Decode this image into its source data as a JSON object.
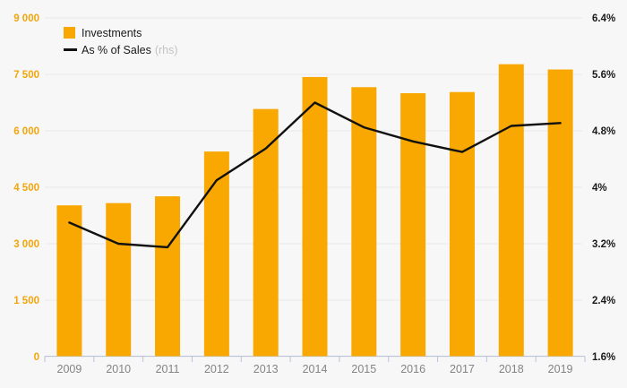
{
  "chart_data": {
    "type": "bar+line",
    "categories": [
      "2009",
      "2010",
      "2011",
      "2012",
      "2013",
      "2014",
      "2015",
      "2016",
      "2017",
      "2018",
      "2019"
    ],
    "series": [
      {
        "name": "Investments",
        "type": "bar",
        "axis": "left",
        "color": "#f8a800",
        "values": [
          4020,
          4080,
          4260,
          5450,
          6580,
          7430,
          7160,
          7000,
          7030,
          7770,
          7630
        ]
      },
      {
        "name": "As % of Sales",
        "axis_note": "(rhs)",
        "type": "line",
        "axis": "right",
        "color": "#111111",
        "values": [
          3.5,
          3.2,
          3.15,
          4.1,
          4.55,
          5.2,
          4.85,
          4.65,
          4.5,
          4.87,
          4.91
        ]
      }
    ],
    "y_left": {
      "min": 0,
      "max": 9000,
      "tick_step": 1500,
      "ticks": [
        "9 000",
        "7 500",
        "6 000",
        "4 500",
        "3 000",
        "1 500",
        "0"
      ],
      "color": "#f2a50c"
    },
    "y_right": {
      "min": 1.6,
      "max": 6.4,
      "tick_step": 0.8,
      "ticks": [
        "6.4%",
        "5.6%",
        "4.8%",
        "4%",
        "3.2%",
        "2.4%",
        "1.6%"
      ],
      "color": "#1a1a1a"
    },
    "x_axis": {
      "label_color": "#848484",
      "axis_color": "#b9c4da"
    },
    "grid": true,
    "grid_color": "#e9e9e9",
    "legend_position": "top-left",
    "background": "#f7f7f7"
  }
}
